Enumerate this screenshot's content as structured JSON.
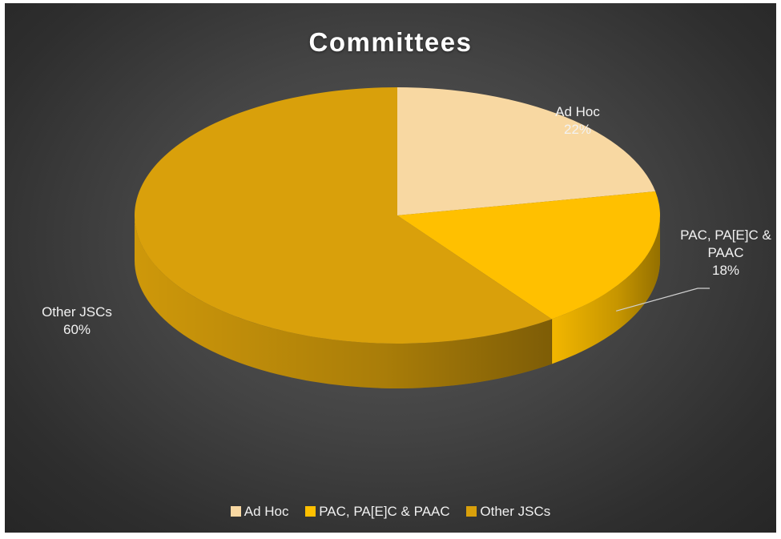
{
  "chart_data": {
    "type": "pie",
    "title": "Committees",
    "categories": [
      "Ad Hoc",
      "PAC, PA[E]C & PAAC",
      "Other JSCs"
    ],
    "values": [
      22,
      18,
      60
    ],
    "unit": "%",
    "colors": [
      "#f8d8a2",
      "#ffc000",
      "#d9a00b"
    ],
    "data_labels": [
      {
        "lines": [
          "Ad Hoc",
          "22%"
        ]
      },
      {
        "lines": [
          "PAC, PA[E]C &",
          "PAAC",
          "18%"
        ]
      },
      {
        "lines": [
          "Other JSCs",
          "60%"
        ]
      }
    ],
    "legend": {
      "placement": "bottom",
      "entries": [
        "Ad Hoc",
        "PAC, PA[E]C & PAAC",
        "Other JSCs"
      ]
    },
    "style": "3d"
  }
}
